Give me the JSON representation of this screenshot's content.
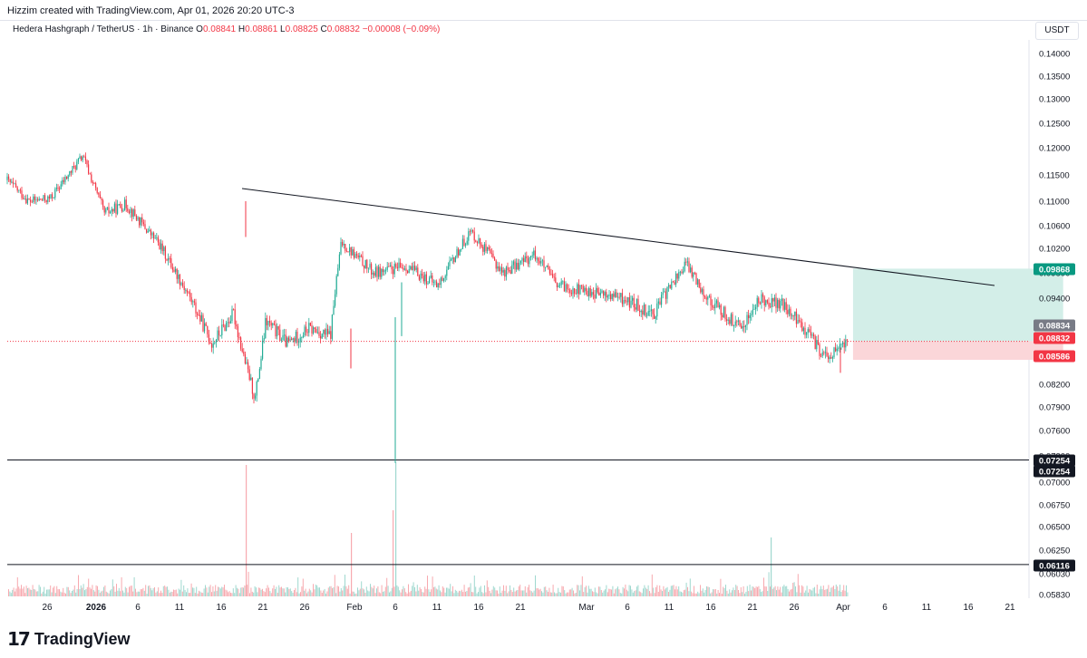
{
  "header": {
    "credit": "Hizzim created with TradingView.com, Apr 01, 2026 20:20 UTC-3"
  },
  "legend": {
    "symbol": "Hedera Hashgraph / TetherUS · 1h · Binance",
    "o_label": "O",
    "o_value": "0.08841",
    "h_label": "H",
    "h_value": "0.08861",
    "l_label": "L",
    "l_value": "0.08825",
    "c_label": "C",
    "c_value": "0.08832",
    "change": "−0.00008 (−0.09%)"
  },
  "currency": "USDT",
  "footer": {
    "brand": "TradingView"
  },
  "colors": {
    "up": "#22ab94",
    "down": "#f23645",
    "line": "#131722",
    "take_profit_fill": "#d3eee8",
    "stop_loss_fill": "#fbd6d9"
  },
  "chart_data": {
    "type": "candlestick",
    "symbol": "HBAR/USDT",
    "interval": "1h",
    "y_axis_ticks": [
      "0.14000",
      "0.13500",
      "0.13000",
      "0.12500",
      "0.12000",
      "0.11500",
      "0.11000",
      "0.10600",
      "0.10200",
      "0.09800",
      "0.09400",
      "0.08600",
      "0.08200",
      "0.07900",
      "0.07600",
      "0.07300",
      "0.07000",
      "0.06750",
      "0.06500",
      "0.06250",
      "0.06030",
      "0.05830"
    ],
    "x_axis_ticks": [
      "26",
      "2026",
      "6",
      "11",
      "16",
      "21",
      "26",
      "Feb",
      "6",
      "11",
      "16",
      "21",
      "Mar",
      "6",
      "11",
      "16",
      "21",
      "26",
      "Apr",
      "6",
      "11",
      "16",
      "21"
    ],
    "price_labels": [
      {
        "value": "0.09868",
        "color": "#089981",
        "role": "take-profit"
      },
      {
        "value": "0.08834",
        "color": "#787b86",
        "role": "entry"
      },
      {
        "value": "0.08832",
        "color": "#f23645",
        "role": "last-price"
      },
      {
        "value": "0.08586",
        "color": "#f23645",
        "role": "stop-loss"
      },
      {
        "value": "0.07254",
        "color": "#131722",
        "role": "horizontal-line"
      },
      {
        "value": "0.07254",
        "color": "#131722",
        "role": "horizontal-line"
      },
      {
        "value": "0.06116",
        "color": "#131722",
        "role": "horizontal-line"
      }
    ],
    "price_path": [
      {
        "t": "Dec 22",
        "p": 0.114
      },
      {
        "t": "Dec 24",
        "p": 0.11
      },
      {
        "t": "Dec 26",
        "p": 0.1105
      },
      {
        "t": "Dec 29",
        "p": 0.1185
      },
      {
        "t": "Dec 31",
        "p": 0.108
      },
      {
        "t": "Jan 2",
        "p": 0.111
      },
      {
        "t": "Jan 4",
        "p": 0.129
      },
      {
        "t": "Jan 6",
        "p": 0.134
      },
      {
        "t": "Jan 8",
        "p": 0.123
      },
      {
        "t": "Jan 10",
        "p": 0.12
      },
      {
        "t": "Jan 12",
        "p": 0.1165
      },
      {
        "t": "Jan 14",
        "p": 0.129
      },
      {
        "t": "Jan 16",
        "p": 0.1195
      },
      {
        "t": "Jan 18",
        "p": 0.118
      },
      {
        "t": "Jan 19",
        "p": 0.106
      },
      {
        "t": "Jan 22",
        "p": 0.108
      },
      {
        "t": "Jan 24",
        "p": 0.1095
      },
      {
        "t": "Jan 27",
        "p": 0.103
      },
      {
        "t": "Jan 29",
        "p": 0.097
      },
      {
        "t": "Feb 1",
        "p": 0.088
      },
      {
        "t": "Feb 3",
        "p": 0.092
      },
      {
        "t": "Feb 5",
        "p": 0.08
      },
      {
        "t": "Feb 6",
        "p": 0.091
      },
      {
        "t": "Feb 8",
        "p": 0.088
      },
      {
        "t": "Feb 10",
        "p": 0.09
      },
      {
        "t": "Feb 12",
        "p": 0.089
      },
      {
        "t": "Feb 13",
        "p": 0.103
      },
      {
        "t": "Feb 16",
        "p": 0.098
      },
      {
        "t": "Feb 19",
        "p": 0.099
      },
      {
        "t": "Feb 22",
        "p": 0.096
      },
      {
        "t": "Feb 25",
        "p": 0.105
      },
      {
        "t": "Feb 28",
        "p": 0.098
      },
      {
        "t": "Mar 3",
        "p": 0.101
      },
      {
        "t": "Mar 5",
        "p": 0.096
      },
      {
        "t": "Mar 8",
        "p": 0.095
      },
      {
        "t": "Mar 11",
        "p": 0.094
      },
      {
        "t": "Mar 14",
        "p": 0.092
      },
      {
        "t": "Mar 17",
        "p": 0.0995
      },
      {
        "t": "Mar 19",
        "p": 0.094
      },
      {
        "t": "Mar 22",
        "p": 0.09
      },
      {
        "t": "Mar 24",
        "p": 0.094
      },
      {
        "t": "Mar 26",
        "p": 0.093
      },
      {
        "t": "Mar 28",
        "p": 0.09
      },
      {
        "t": "Mar 30",
        "p": 0.086
      },
      {
        "t": "Apr 1",
        "p": 0.0883
      }
    ],
    "trendline": [
      {
        "t": "Jan 19",
        "p": 0.11
      },
      {
        "t": "Apr 13",
        "p": 0.098
      }
    ],
    "position": {
      "entry": 0.08834,
      "take_profit": 0.09868,
      "stop_loss": 0.08586
    }
  }
}
